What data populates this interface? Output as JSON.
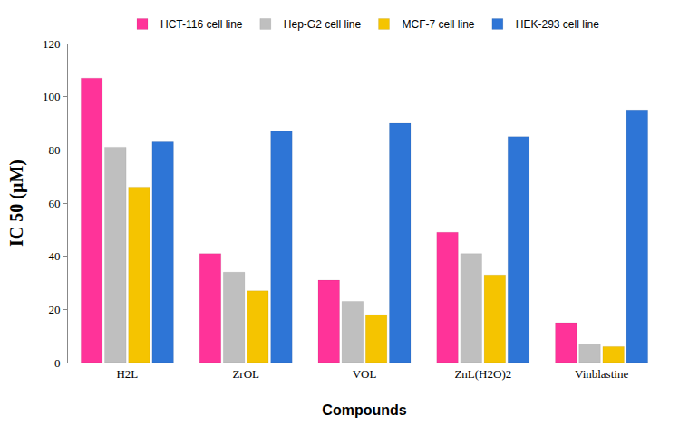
{
  "chart_data": {
    "type": "bar",
    "x_label": "Compounds",
    "y_label": "IC 50 (µM)",
    "categories": [
      "H2L",
      "ZrOL",
      "VOL",
      "ZnL(H2O)2",
      "Vinblastine"
    ],
    "series": [
      {
        "name": "HCT-116 cell line",
        "color": "#ff3399",
        "values": [
          107,
          41,
          31,
          49,
          15
        ]
      },
      {
        "name": "Hep-G2 cell line",
        "color": "#bfbfbf",
        "values": [
          81,
          34,
          23,
          41,
          7
        ]
      },
      {
        "name": "MCF-7 cell line",
        "color": "#f5c400",
        "values": [
          66,
          27,
          18,
          33,
          6
        ]
      },
      {
        "name": "HEK-293 cell line",
        "color": "#2e75d6",
        "values": [
          83,
          87,
          90,
          85,
          95
        ]
      }
    ],
    "ylim": [
      0,
      120
    ],
    "yticks": [
      0,
      20,
      40,
      60,
      80,
      100,
      120
    ],
    "grid": false,
    "legend": "top"
  }
}
